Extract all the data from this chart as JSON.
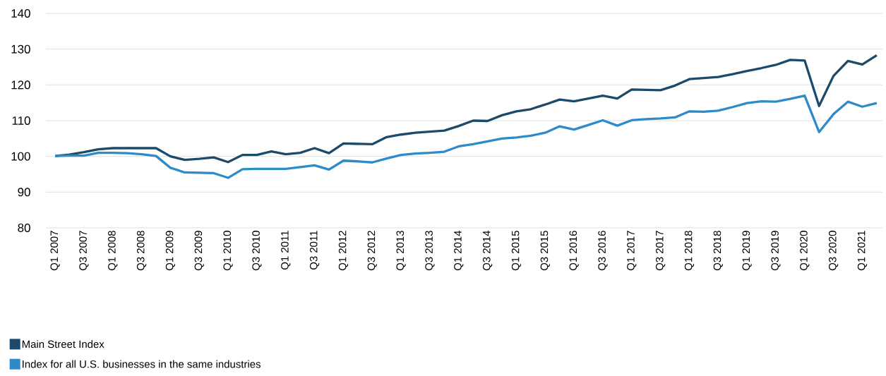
{
  "chart_data": {
    "type": "line",
    "categories": [
      "Q1 2007",
      null,
      "Q3 2007",
      null,
      "Q1 2008",
      null,
      "Q3 2008",
      null,
      "Q1 2009",
      null,
      "Q3 2009",
      null,
      "Q1 2010",
      null,
      "Q3 2010",
      null,
      "Q1 2011",
      null,
      "Q3 2011",
      null,
      "Q1 2012",
      null,
      "Q3 2012",
      null,
      "Q1 2013",
      null,
      "Q3 2013",
      null,
      "Q1 2014",
      null,
      "Q3 2014",
      null,
      "Q1 2015",
      null,
      "Q3 2015",
      null,
      "Q1 2016",
      null,
      "Q3 2016",
      null,
      "Q1 2017",
      null,
      "Q3 2017",
      null,
      "Q1 2018",
      null,
      "Q3 2018",
      null,
      "Q1 2019",
      null,
      "Q3 2019",
      null,
      "Q1 2020",
      null,
      "Q3 2020",
      null,
      "Q1 2021",
      null
    ],
    "series": [
      {
        "name": "Main Street Index",
        "color": "#1b4a6b",
        "values": [
          100.1,
          100.5,
          101.2,
          102.0,
          102.3,
          102.3,
          102.3,
          102.3,
          100.0,
          99.0,
          99.3,
          99.7,
          98.4,
          100.4,
          100.4,
          101.4,
          100.6,
          101.0,
          102.3,
          100.9,
          103.6,
          103.5,
          103.4,
          105.4,
          106.1,
          106.6,
          106.9,
          107.2,
          108.5,
          110.0,
          109.9,
          111.5,
          112.6,
          113.2,
          114.5,
          115.9,
          115.4,
          116.2,
          117.0,
          116.2,
          118.7,
          118.6,
          118.5,
          119.8,
          121.6,
          121.9,
          122.2,
          123.0,
          123.9,
          124.7,
          125.6,
          127.0,
          126.8,
          114.1,
          122.5,
          126.7,
          125.7,
          128.3
        ]
      },
      {
        "name": "Index for all U.S. businesses in the same industries",
        "color": "#2e8bc9",
        "values": [
          100.1,
          100.2,
          100.2,
          101.0,
          101.0,
          100.9,
          100.6,
          100.1,
          96.8,
          95.5,
          95.4,
          95.3,
          94.0,
          96.4,
          96.5,
          96.5,
          96.5,
          97.0,
          97.5,
          96.3,
          98.8,
          98.6,
          98.3,
          99.4,
          100.4,
          100.8,
          101.0,
          101.3,
          102.8,
          103.4,
          104.2,
          105.0,
          105.3,
          105.8,
          106.6,
          108.4,
          107.5,
          108.8,
          110.1,
          108.6,
          110.1,
          110.4,
          110.6,
          110.9,
          112.6,
          112.5,
          112.8,
          113.8,
          114.9,
          115.4,
          115.3,
          116.1,
          117.0,
          106.8,
          111.8,
          115.3,
          113.9,
          114.9
        ]
      }
    ],
    "ylim": [
      80,
      140
    ],
    "yticks": [
      80,
      90,
      100,
      110,
      120,
      130,
      140
    ],
    "grid": "y",
    "legend": "bottom left",
    "marker": "none",
    "line_style": "solid"
  }
}
